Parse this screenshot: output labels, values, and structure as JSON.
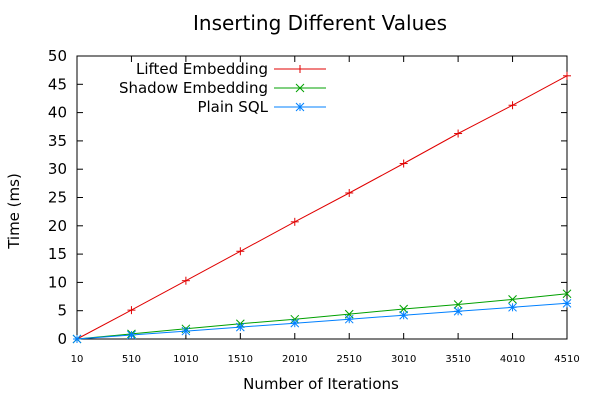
{
  "chart_data": {
    "type": "line",
    "title": "Inserting Different Values",
    "xlabel": "Number of Iterations",
    "ylabel": "Time (ms)",
    "x": [
      10,
      510,
      1010,
      1510,
      2010,
      2510,
      3010,
      3510,
      4010,
      4510
    ],
    "x_ticks": [
      "10",
      "510",
      "1010",
      "1510",
      "2010",
      "2510",
      "3010",
      "3510",
      "4010",
      "4510"
    ],
    "xlim": [
      10,
      4510
    ],
    "y_ticks": [
      "0",
      "5",
      "10",
      "15",
      "20",
      "25",
      "30",
      "35",
      "40",
      "45",
      "50"
    ],
    "ylim": [
      0,
      50
    ],
    "grid": false,
    "legend_position": "top-left",
    "series": [
      {
        "name": "Lifted Embedding",
        "color": "#e00000",
        "marker": "plus",
        "values": [
          0,
          5.1,
          10.3,
          15.5,
          20.7,
          25.8,
          31.0,
          36.3,
          41.3,
          46.5
        ]
      },
      {
        "name": "Shadow Embedding",
        "color": "#00a000",
        "marker": "cross",
        "values": [
          0,
          0.9,
          1.8,
          2.7,
          3.5,
          4.4,
          5.3,
          6.1,
          7.0,
          8.0
        ]
      },
      {
        "name": "Plain SQL",
        "color": "#0080ff",
        "marker": "star",
        "values": [
          0,
          0.7,
          1.4,
          2.1,
          2.8,
          3.5,
          4.2,
          4.9,
          5.6,
          6.3
        ]
      }
    ]
  }
}
